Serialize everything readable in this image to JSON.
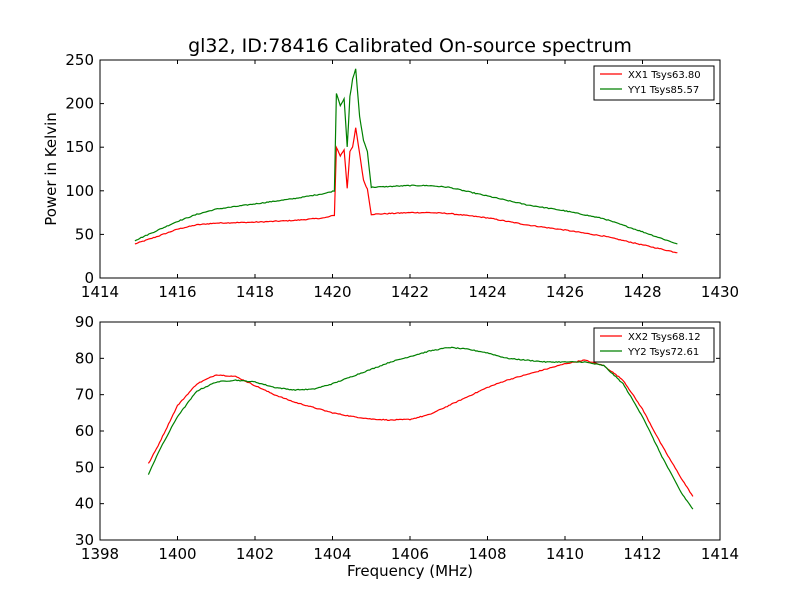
{
  "chart_data": [
    {
      "type": "line",
      "title": "gl32, ID:78416 Calibrated On-source spectrum",
      "xlabel": "",
      "ylabel": "Power in Kelvin",
      "xlim": [
        1414,
        1430
      ],
      "ylim": [
        0,
        250
      ],
      "xticks": [
        "1414",
        "1416",
        "1418",
        "1420",
        "1422",
        "1424",
        "1426",
        "1428",
        "1430"
      ],
      "yticks": [
        "0",
        "50",
        "100",
        "150",
        "200",
        "250"
      ],
      "grid": false,
      "legend_position": "top-right",
      "series": [
        {
          "name": "XX1 Tsys63.80",
          "color": "#ff0000",
          "x": [
            1414.9,
            1415.5,
            1416.0,
            1416.5,
            1417.0,
            1418.0,
            1419.0,
            1419.8,
            1420.05,
            1420.1,
            1420.2,
            1420.3,
            1420.38,
            1420.45,
            1420.52,
            1420.6,
            1420.7,
            1420.8,
            1420.9,
            1421.0,
            1421.5,
            1422.0,
            1422.5,
            1423.0,
            1424.0,
            1425.0,
            1426.0,
            1427.0,
            1428.0,
            1428.9
          ],
          "values": [
            39,
            48,
            56,
            61,
            63,
            64,
            66,
            69,
            72,
            150,
            140,
            147,
            103,
            145,
            150,
            172,
            143,
            112,
            102,
            73,
            74,
            75,
            75,
            74,
            69,
            61,
            55,
            48,
            38,
            29
          ]
        },
        {
          "name": "YY1 Tsys85.57",
          "color": "#008000",
          "x": [
            1414.9,
            1415.5,
            1416.0,
            1416.5,
            1417.0,
            1418.0,
            1419.0,
            1419.8,
            1420.05,
            1420.1,
            1420.2,
            1420.3,
            1420.38,
            1420.45,
            1420.52,
            1420.6,
            1420.7,
            1420.8,
            1420.9,
            1421.0,
            1421.5,
            1422.0,
            1422.5,
            1423.0,
            1424.0,
            1425.0,
            1426.0,
            1427.0,
            1428.0,
            1428.9
          ],
          "values": [
            43,
            55,
            65,
            73,
            79,
            85,
            91,
            97,
            100,
            212,
            198,
            205,
            150,
            208,
            228,
            240,
            185,
            158,
            145,
            104,
            105,
            106,
            106,
            104,
            94,
            84,
            77,
            68,
            53,
            39
          ]
        }
      ]
    },
    {
      "type": "line",
      "title": "",
      "xlabel": "Frequency (MHz)",
      "ylabel": "",
      "xlim": [
        1398,
        1414
      ],
      "ylim": [
        30,
        90
      ],
      "xticks": [
        "1398",
        "1400",
        "1402",
        "1404",
        "1406",
        "1408",
        "1410",
        "1412",
        "1414"
      ],
      "yticks": [
        "30",
        "40",
        "50",
        "60",
        "70",
        "80",
        "90"
      ],
      "grid": false,
      "legend_position": "top-right",
      "series": [
        {
          "name": "XX2 Tsys68.12",
          "color": "#ff0000",
          "x": [
            1399.25,
            1399.5,
            1400.0,
            1400.5,
            1401.0,
            1401.5,
            1402.0,
            1402.5,
            1403.0,
            1403.5,
            1404.0,
            1404.5,
            1405.0,
            1405.5,
            1406.0,
            1406.5,
            1407.0,
            1407.5,
            1408.0,
            1408.5,
            1409.0,
            1409.5,
            1410.0,
            1410.5,
            1411.0,
            1411.5,
            1412.0,
            1412.5,
            1413.0,
            1413.3
          ],
          "values": [
            51,
            56,
            67,
            73,
            75.5,
            75,
            72.5,
            70,
            68,
            66.5,
            65,
            64,
            63.3,
            63,
            63.2,
            64.5,
            67,
            69.5,
            72,
            74,
            75.5,
            77,
            78.5,
            79.5,
            78,
            74,
            66,
            56,
            47,
            42
          ]
        },
        {
          "name": "YY2 Tsys72.61",
          "color": "#008000",
          "x": [
            1399.25,
            1399.5,
            1400.0,
            1400.5,
            1401.0,
            1401.5,
            1402.0,
            1402.5,
            1403.0,
            1403.5,
            1404.0,
            1404.5,
            1405.0,
            1405.5,
            1406.0,
            1406.5,
            1407.0,
            1407.5,
            1408.0,
            1408.5,
            1409.0,
            1409.5,
            1410.0,
            1410.5,
            1411.0,
            1411.5,
            1412.0,
            1412.5,
            1413.0,
            1413.3
          ],
          "values": [
            48,
            54,
            64,
            71,
            73.5,
            74,
            73.5,
            72,
            71.3,
            71.5,
            73,
            75,
            77,
            79,
            80.5,
            82,
            83,
            82.5,
            81.5,
            80,
            79.5,
            79,
            79,
            79,
            78,
            73,
            64,
            53,
            43,
            38.5
          ]
        }
      ]
    }
  ]
}
